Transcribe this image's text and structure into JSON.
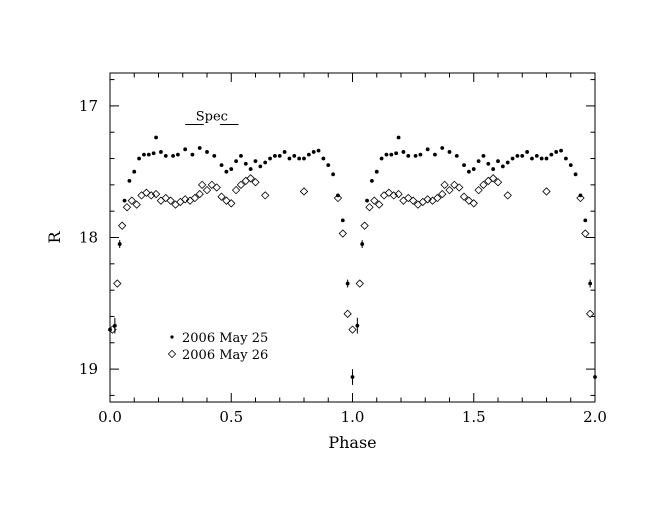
{
  "chart_data": {
    "type": "scatter",
    "title": "",
    "xlabel": "Phase",
    "ylabel": "R",
    "xlim": [
      0.0,
      2.0
    ],
    "ylim": [
      19.25,
      16.75
    ],
    "y_inverted": true,
    "xticks": [
      "0.0",
      "0.5",
      "1.0",
      "1.5",
      "2.0"
    ],
    "yticks": [
      "17",
      "18",
      "19"
    ],
    "legend_position": "bottom-left",
    "annotation": {
      "text": "Spec",
      "x_range": [
        0.31,
        0.53
      ],
      "y": 17.05
    },
    "series": [
      {
        "name": "2006 May 25",
        "marker": "filled-dot",
        "points": [
          [
            0.0,
            18.7
          ],
          [
            0.02,
            18.67
          ],
          [
            0.04,
            18.05
          ],
          [
            0.06,
            17.72
          ],
          [
            0.08,
            17.57
          ],
          [
            0.1,
            17.5
          ],
          [
            0.12,
            17.4
          ],
          [
            0.14,
            17.37
          ],
          [
            0.16,
            17.37
          ],
          [
            0.18,
            17.36
          ],
          [
            0.19,
            17.24
          ],
          [
            0.21,
            17.35
          ],
          [
            0.23,
            17.38
          ],
          [
            0.26,
            17.38
          ],
          [
            0.28,
            17.37
          ],
          [
            0.31,
            17.33
          ],
          [
            0.34,
            17.37
          ],
          [
            0.37,
            17.32
          ],
          [
            0.4,
            17.35
          ],
          [
            0.43,
            17.38
          ],
          [
            0.46,
            17.45
          ],
          [
            0.48,
            17.5
          ],
          [
            0.5,
            17.48
          ],
          [
            0.52,
            17.42
          ],
          [
            0.54,
            17.38
          ],
          [
            0.56,
            17.44
          ],
          [
            0.58,
            17.48
          ],
          [
            0.6,
            17.42
          ],
          [
            0.62,
            17.46
          ],
          [
            0.64,
            17.43
          ],
          [
            0.66,
            17.4
          ],
          [
            0.68,
            17.38
          ],
          [
            0.7,
            17.38
          ],
          [
            0.72,
            17.35
          ],
          [
            0.74,
            17.4
          ],
          [
            0.76,
            17.38
          ],
          [
            0.78,
            17.4
          ],
          [
            0.8,
            17.4
          ],
          [
            0.82,
            17.37
          ],
          [
            0.84,
            17.35
          ],
          [
            0.86,
            17.34
          ],
          [
            0.88,
            17.4
          ],
          [
            0.9,
            17.45
          ],
          [
            0.92,
            17.52
          ],
          [
            0.94,
            17.68
          ],
          [
            0.96,
            17.87
          ],
          [
            0.98,
            18.35
          ],
          [
            1.0,
            19.06
          ],
          [
            1.02,
            18.67
          ],
          [
            1.04,
            18.05
          ],
          [
            1.06,
            17.72
          ],
          [
            1.08,
            17.57
          ],
          [
            1.1,
            17.5
          ],
          [
            1.12,
            17.4
          ],
          [
            1.14,
            17.37
          ],
          [
            1.16,
            17.37
          ],
          [
            1.18,
            17.36
          ],
          [
            1.19,
            17.24
          ],
          [
            1.21,
            17.35
          ],
          [
            1.23,
            17.38
          ],
          [
            1.26,
            17.38
          ],
          [
            1.28,
            17.37
          ],
          [
            1.31,
            17.33
          ],
          [
            1.34,
            17.37
          ],
          [
            1.37,
            17.32
          ],
          [
            1.4,
            17.35
          ],
          [
            1.43,
            17.38
          ],
          [
            1.46,
            17.45
          ],
          [
            1.48,
            17.5
          ],
          [
            1.5,
            17.48
          ],
          [
            1.52,
            17.42
          ],
          [
            1.54,
            17.38
          ],
          [
            1.56,
            17.44
          ],
          [
            1.58,
            17.48
          ],
          [
            1.6,
            17.42
          ],
          [
            1.62,
            17.46
          ],
          [
            1.64,
            17.43
          ],
          [
            1.66,
            17.4
          ],
          [
            1.68,
            17.38
          ],
          [
            1.7,
            17.38
          ],
          [
            1.72,
            17.35
          ],
          [
            1.74,
            17.4
          ],
          [
            1.76,
            17.38
          ],
          [
            1.78,
            17.4
          ],
          [
            1.8,
            17.4
          ],
          [
            1.82,
            17.37
          ],
          [
            1.84,
            17.35
          ],
          [
            1.86,
            17.34
          ],
          [
            1.88,
            17.4
          ],
          [
            1.9,
            17.45
          ],
          [
            1.92,
            17.52
          ],
          [
            1.94,
            17.68
          ],
          [
            1.96,
            17.87
          ],
          [
            1.98,
            18.35
          ],
          [
            2.0,
            19.06
          ]
        ]
      },
      {
        "name": "2006 May 26",
        "marker": "open-diamond",
        "points": [
          [
            0.01,
            18.7
          ],
          [
            0.03,
            18.35
          ],
          [
            0.05,
            17.91
          ],
          [
            0.07,
            17.77
          ],
          [
            0.09,
            17.72
          ],
          [
            0.11,
            17.75
          ],
          [
            0.13,
            17.68
          ],
          [
            0.15,
            17.66
          ],
          [
            0.17,
            17.68
          ],
          [
            0.19,
            17.67
          ],
          [
            0.21,
            17.72
          ],
          [
            0.23,
            17.7
          ],
          [
            0.25,
            17.72
          ],
          [
            0.27,
            17.75
          ],
          [
            0.29,
            17.73
          ],
          [
            0.31,
            17.71
          ],
          [
            0.33,
            17.72
          ],
          [
            0.35,
            17.7
          ],
          [
            0.37,
            17.67
          ],
          [
            0.38,
            17.6
          ],
          [
            0.4,
            17.64
          ],
          [
            0.42,
            17.6
          ],
          [
            0.44,
            17.62
          ],
          [
            0.46,
            17.69
          ],
          [
            0.48,
            17.72
          ],
          [
            0.5,
            17.74
          ],
          [
            0.52,
            17.64
          ],
          [
            0.54,
            17.6
          ],
          [
            0.56,
            17.57
          ],
          [
            0.58,
            17.55
          ],
          [
            0.6,
            17.58
          ],
          [
            0.64,
            17.68
          ],
          [
            0.8,
            17.65
          ],
          [
            0.94,
            17.7
          ],
          [
            0.96,
            17.97
          ],
          [
            0.98,
            18.58
          ],
          [
            1.0,
            18.7
          ],
          [
            1.03,
            18.35
          ],
          [
            1.05,
            17.91
          ],
          [
            1.07,
            17.77
          ],
          [
            1.09,
            17.72
          ],
          [
            1.11,
            17.75
          ],
          [
            1.13,
            17.68
          ],
          [
            1.15,
            17.66
          ],
          [
            1.17,
            17.68
          ],
          [
            1.19,
            17.67
          ],
          [
            1.21,
            17.72
          ],
          [
            1.23,
            17.7
          ],
          [
            1.25,
            17.72
          ],
          [
            1.27,
            17.75
          ],
          [
            1.29,
            17.73
          ],
          [
            1.31,
            17.71
          ],
          [
            1.33,
            17.72
          ],
          [
            1.35,
            17.7
          ],
          [
            1.37,
            17.67
          ],
          [
            1.38,
            17.6
          ],
          [
            1.4,
            17.64
          ],
          [
            1.42,
            17.6
          ],
          [
            1.44,
            17.62
          ],
          [
            1.46,
            17.69
          ],
          [
            1.48,
            17.72
          ],
          [
            1.5,
            17.74
          ],
          [
            1.52,
            17.64
          ],
          [
            1.54,
            17.6
          ],
          [
            1.56,
            17.57
          ],
          [
            1.58,
            17.55
          ],
          [
            1.6,
            17.58
          ],
          [
            1.64,
            17.68
          ],
          [
            1.8,
            17.65
          ],
          [
            1.94,
            17.7
          ],
          [
            1.96,
            17.97
          ],
          [
            1.98,
            18.58
          ]
        ]
      }
    ],
    "error_bars": [
      [
        0.02,
        18.67,
        0.06
      ],
      [
        0.04,
        18.05,
        0.03
      ],
      [
        0.98,
        18.35,
        0.03
      ],
      [
        1.0,
        19.06,
        0.06
      ],
      [
        1.02,
        18.67,
        0.06
      ],
      [
        1.04,
        18.05,
        0.03
      ],
      [
        1.98,
        18.35,
        0.03
      ],
      [
        2.0,
        19.06,
        0.06
      ]
    ]
  }
}
